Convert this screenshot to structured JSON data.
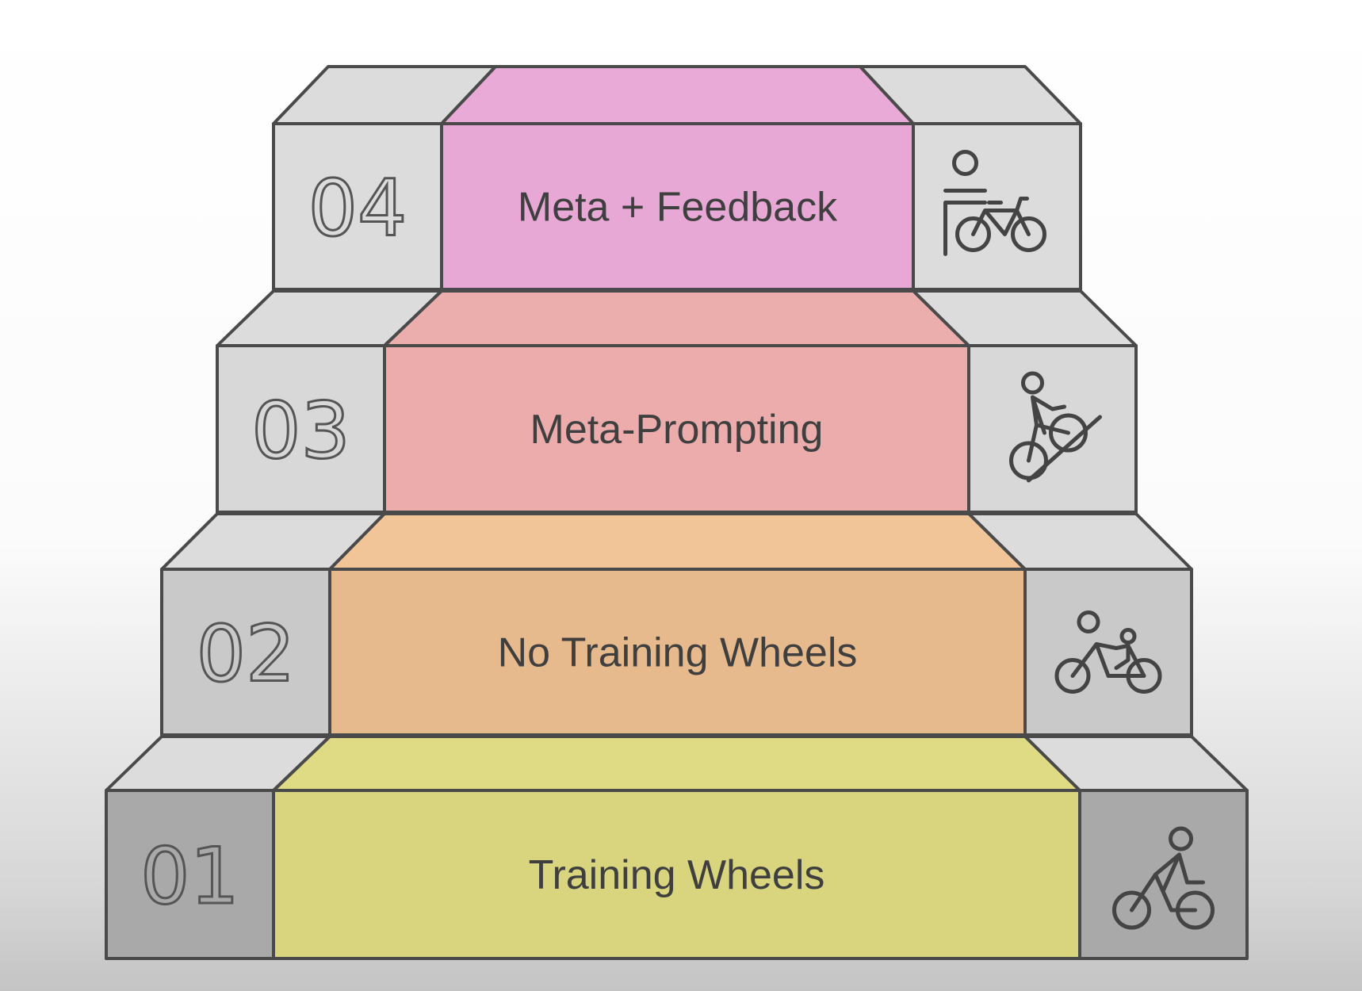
{
  "steps": [
    {
      "number": "01",
      "label": "Training Wheels",
      "color": "#d9d57e",
      "top_color": "#dedb84",
      "side_color": "#a9a9a9",
      "icon": "cyclist-icon"
    },
    {
      "number": "02",
      "label": "No Training Wheels",
      "color": "#e6ba8c",
      "top_color": "#f1c597",
      "side_color": "#c9c9c9",
      "icon": "assisted-cyclist-icon"
    },
    {
      "number": "03",
      "label": "Meta-Prompting",
      "color": "#ebacab",
      "top_color": "#ebaeac",
      "side_color": "#d8d8d8",
      "icon": "uphill-cyclist-icon"
    },
    {
      "number": "04",
      "label": "Meta + Feedback",
      "color": "#e8a8d6",
      "top_color": "#eaaad8",
      "side_color": "#dcdcdc",
      "icon": "person-with-bicycle-icon"
    }
  ],
  "colors": {
    "outline": "#4a4a4a",
    "text": "#3f3f3f"
  }
}
